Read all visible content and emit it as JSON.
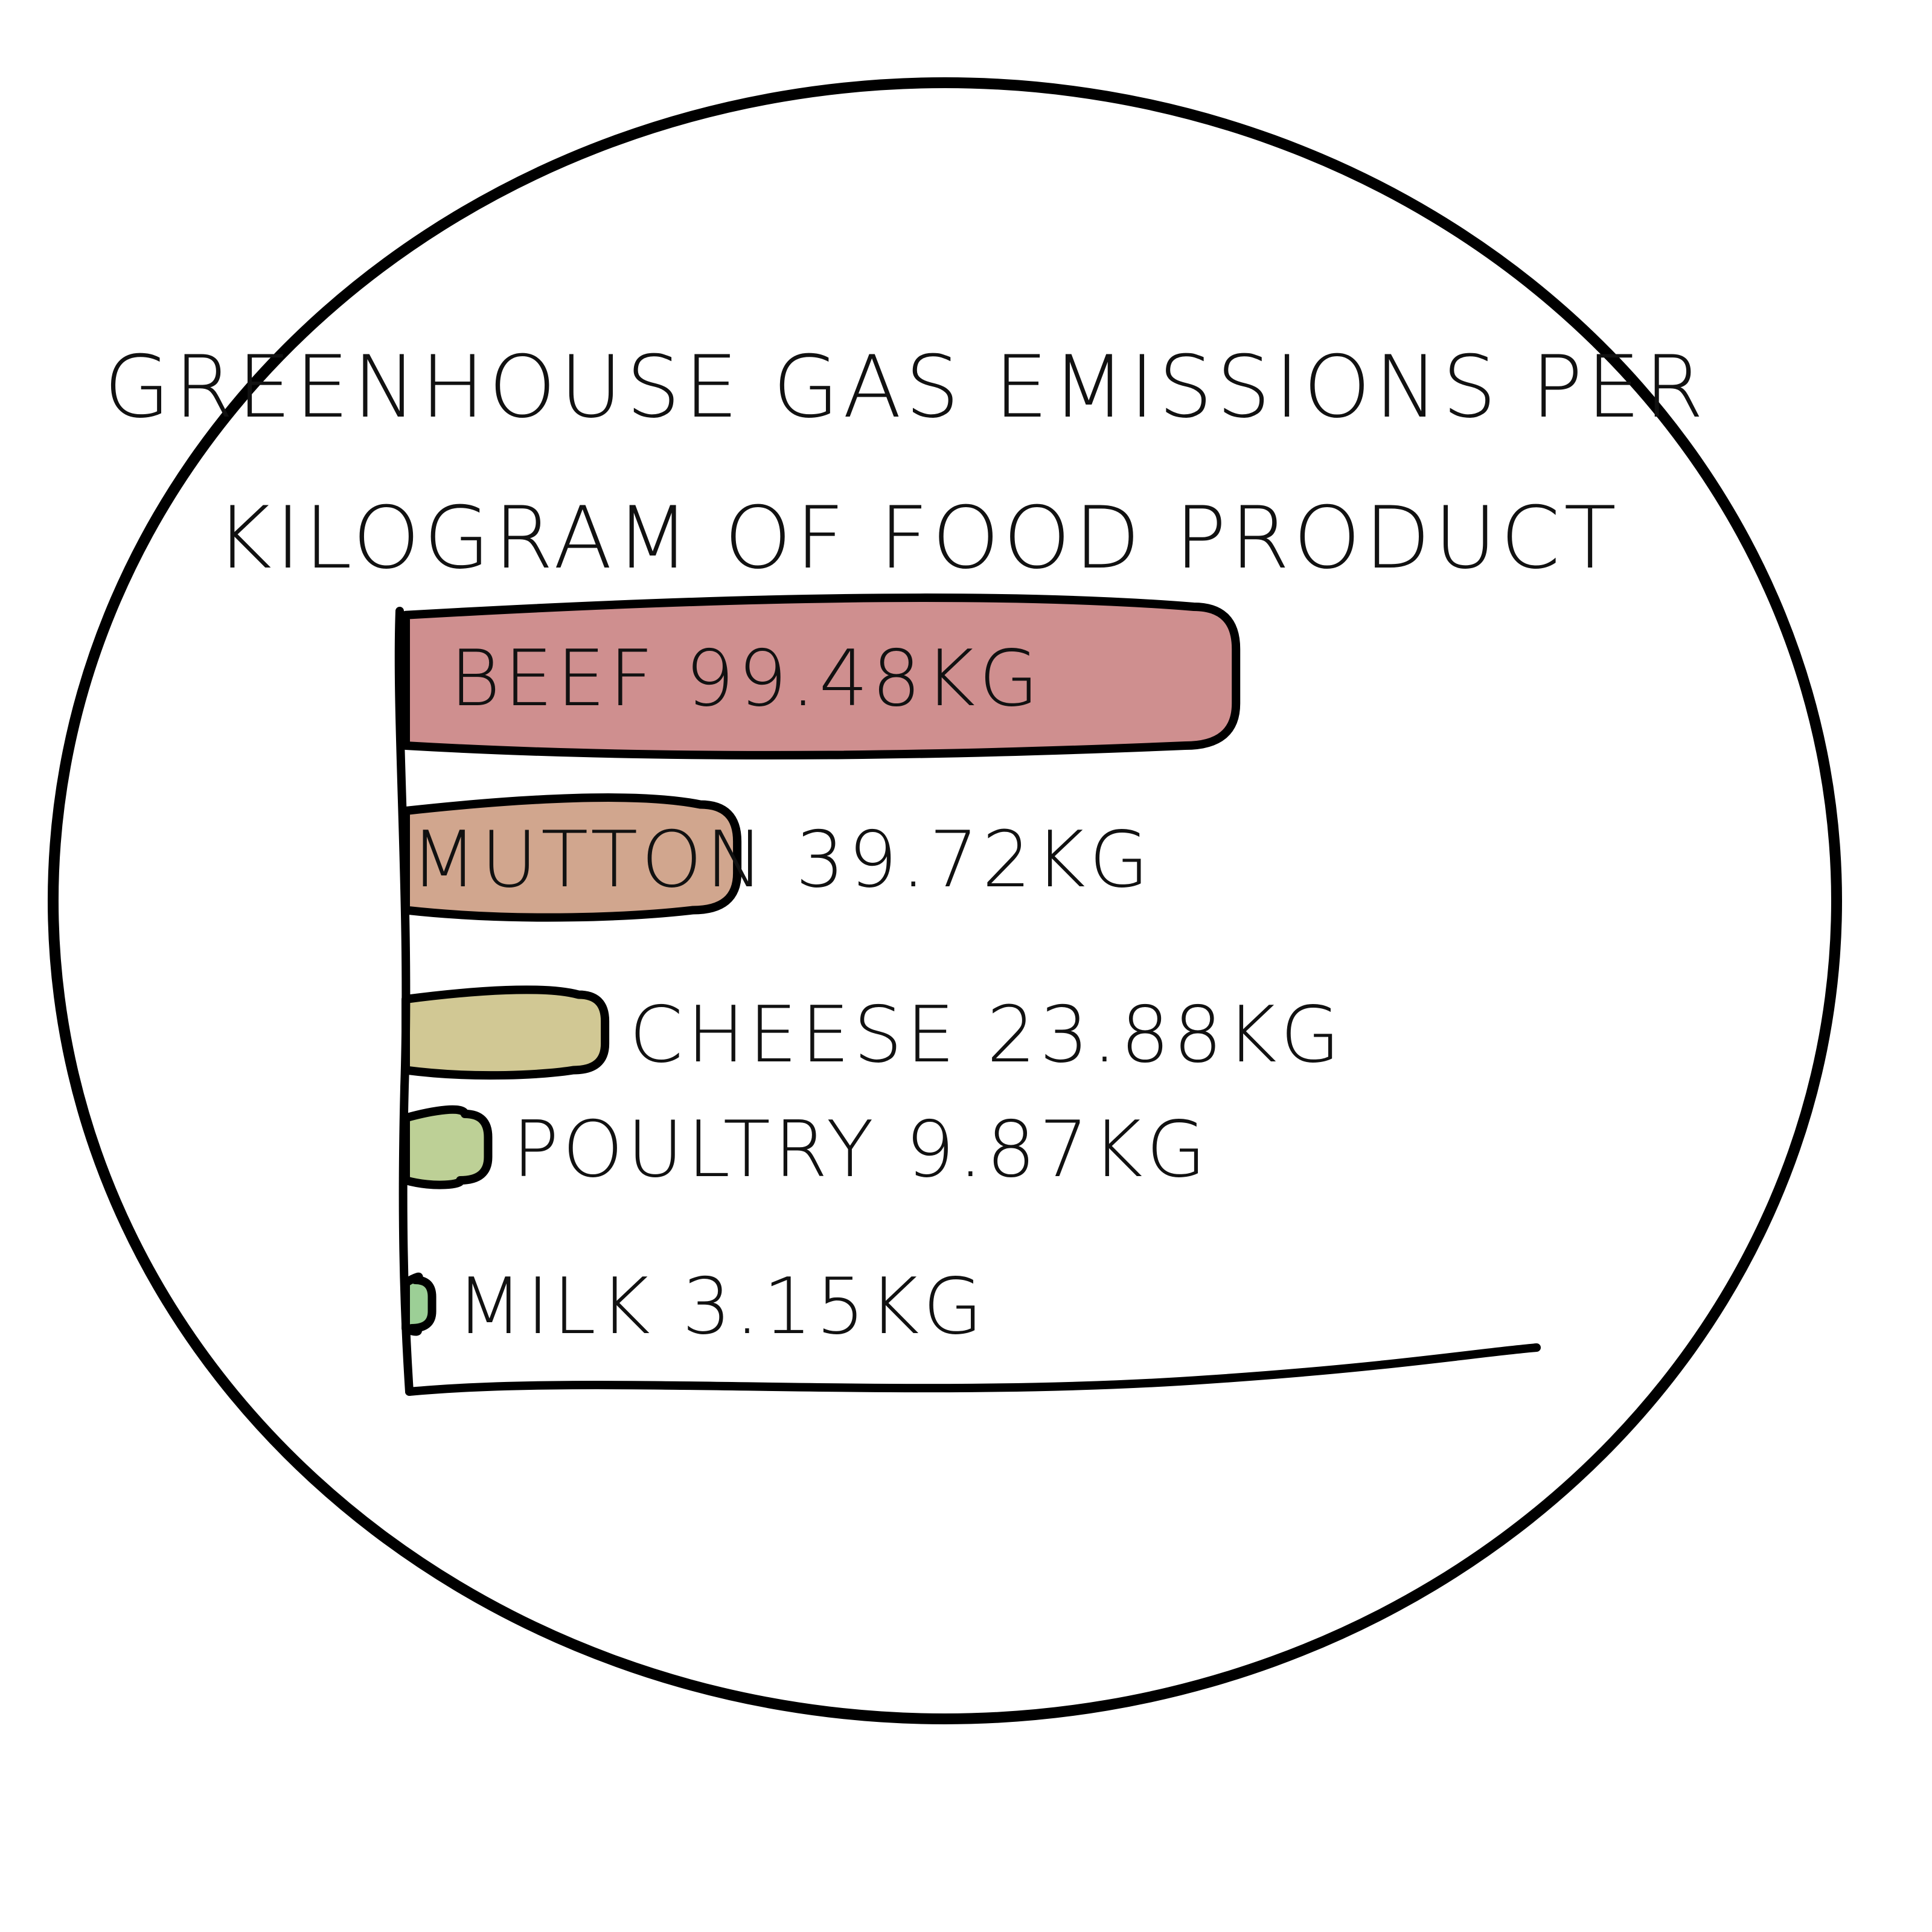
{
  "chart_data": {
    "type": "bar",
    "orientation": "horizontal",
    "title_lines": [
      "GREENHOUSE GAS EMISSIONS PER",
      "KILOGRAM OF FOOD PRODUCT"
    ],
    "xlabel": "",
    "ylabel": "",
    "grid": false,
    "legend": "none",
    "xlim": [
      0,
      125
    ],
    "categories": [
      "BEEF",
      "MUTTON",
      "CHEESE",
      "POULTRY",
      "MILK"
    ],
    "values": [
      99.48,
      39.72,
      23.88,
      9.87,
      3.15
    ],
    "labels": [
      "BEEF 99.48KG",
      "MUTTON 39.72KG",
      "CHEESE 23.88KG",
      "POULTRY 9.87KG",
      "MILK 3.15KG"
    ],
    "colors": [
      "#cf8f8f",
      "#d1a68e",
      "#d1c894",
      "#bdd096",
      "#9ccf96"
    ],
    "label_placement": [
      "inside",
      "inside",
      "outside",
      "outside",
      "outside"
    ]
  }
}
